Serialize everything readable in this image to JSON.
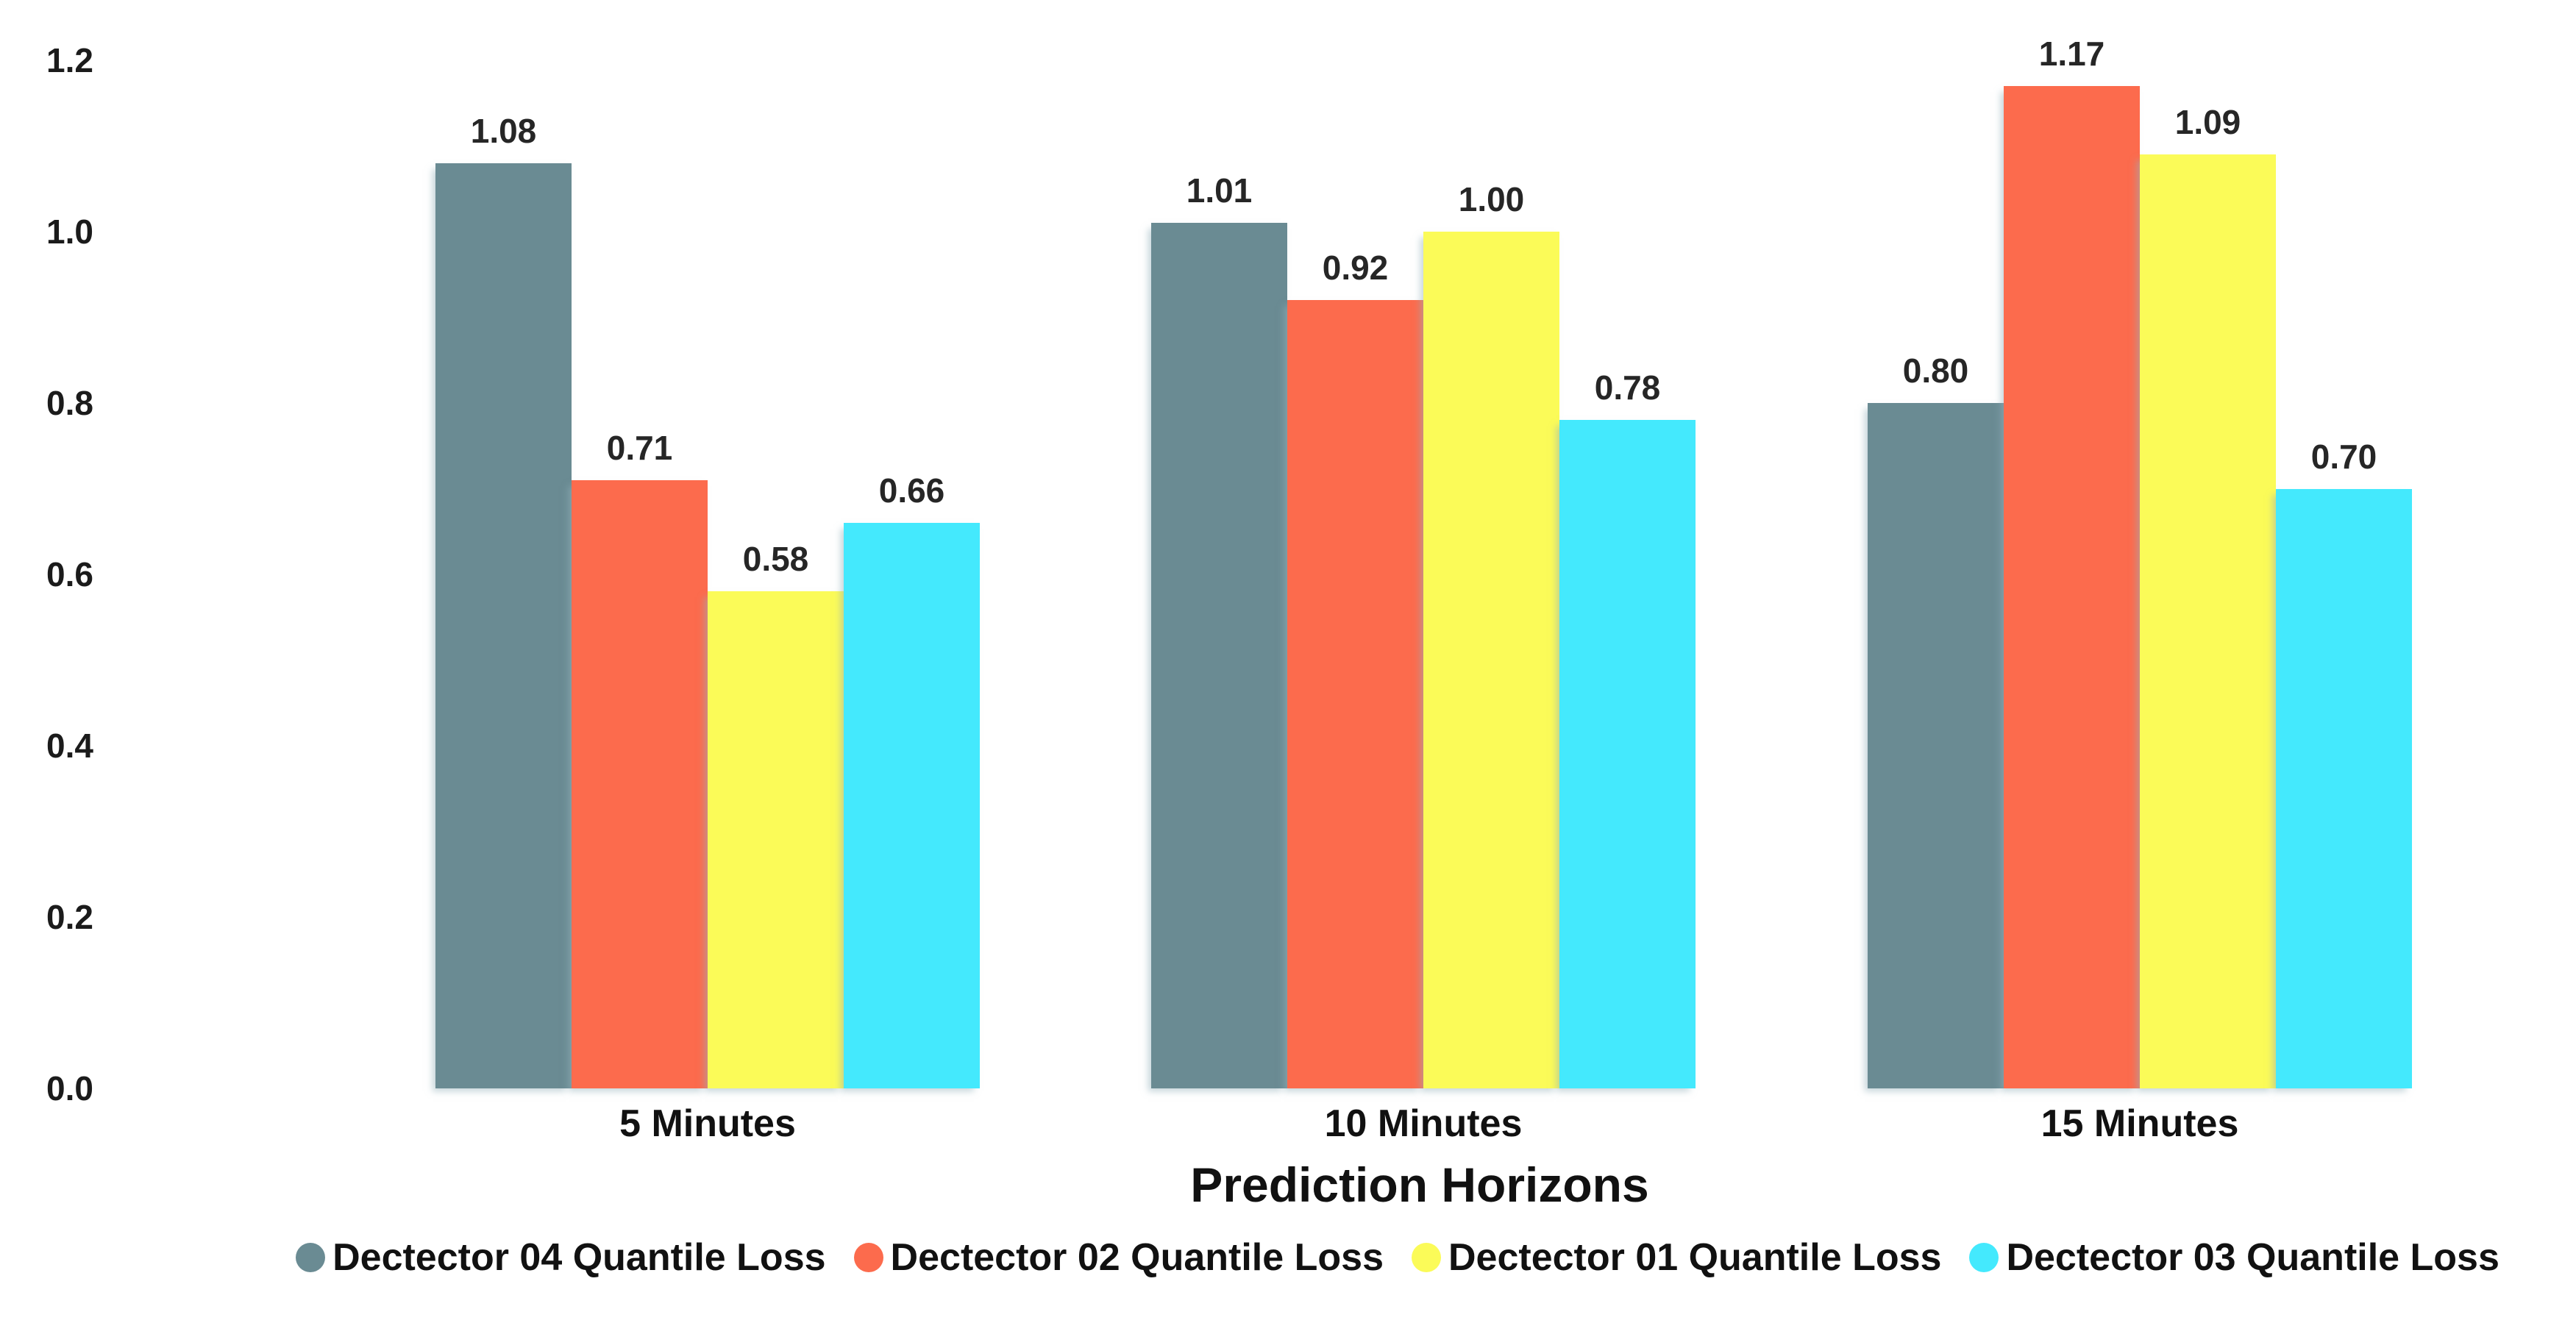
{
  "chart_data": {
    "type": "bar",
    "title": "",
    "xlabel": "Prediction Horizons",
    "ylabel": "",
    "categories": [
      "5 Minutes",
      "10 Minutes",
      "15 Minutes"
    ],
    "series": [
      {
        "name": "Dectector 04 Quantile Loss",
        "color": "#6A8B93",
        "values": [
          1.08,
          1.01,
          0.8
        ],
        "labels": [
          "1.08",
          "1.01",
          "0.80"
        ]
      },
      {
        "name": "Dectector 02 Quantile Loss",
        "color": "#FC6B4D",
        "values": [
          0.71,
          0.92,
          1.17
        ],
        "labels": [
          "0.71",
          "0.92",
          "1.17"
        ]
      },
      {
        "name": "Dectector 01 Quantile Loss",
        "color": "#FBFB58",
        "values": [
          0.58,
          1.0,
          1.09
        ],
        "labels": [
          "0.58",
          "1.00",
          "1.09"
        ]
      },
      {
        "name": "Dectector 03 Quantile Loss",
        "color": "#44E9FD",
        "values": [
          0.66,
          0.78,
          0.7
        ],
        "labels": [
          "0.66",
          "0.78",
          "0.70"
        ]
      }
    ],
    "y_axis": {
      "ticks": [
        {
          "value": 1.2,
          "label": "1.2"
        },
        {
          "value": 1.0,
          "label": "1.0"
        },
        {
          "value": 0.8,
          "label": "0.8"
        },
        {
          "value": 0.6,
          "label": "0.6"
        },
        {
          "value": 0.4,
          "label": "0.4"
        },
        {
          "value": 0.2,
          "label": "0.2"
        },
        {
          "value": 0.0,
          "label": "0.0"
        }
      ],
      "ylim": [
        0,
        1.2
      ]
    },
    "grid": false,
    "legend_position": "bottom",
    "background_color": "#FFFFFF",
    "text_color": "#111111"
  }
}
